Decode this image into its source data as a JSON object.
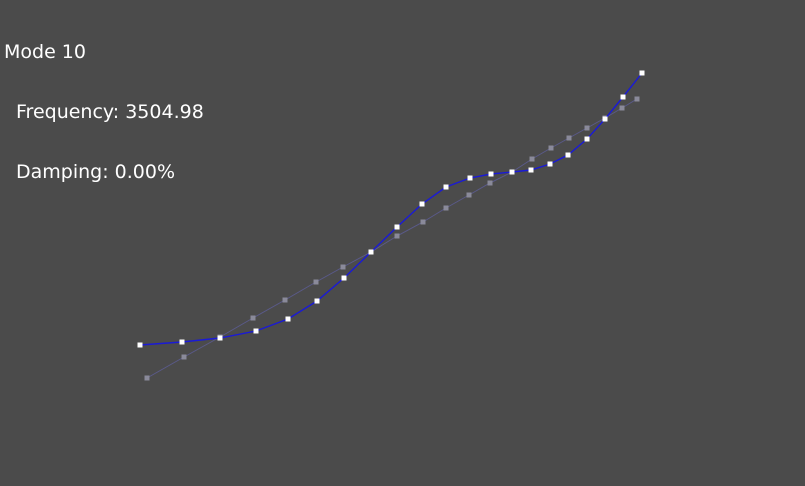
{
  "overlay": {
    "mode_line": "Mode 10",
    "frequency_line": "Frequency: 3504.98",
    "damping_line": "Damping: 0.00%"
  },
  "colors": {
    "background": "#4b4b4b",
    "deformed_line": "#1a1ad6",
    "deformed_node": "#ffffff",
    "undeformed_line": "#5a5a8a",
    "undeformed_node": "#8a8a9a",
    "text": "#ffffff"
  }
}
